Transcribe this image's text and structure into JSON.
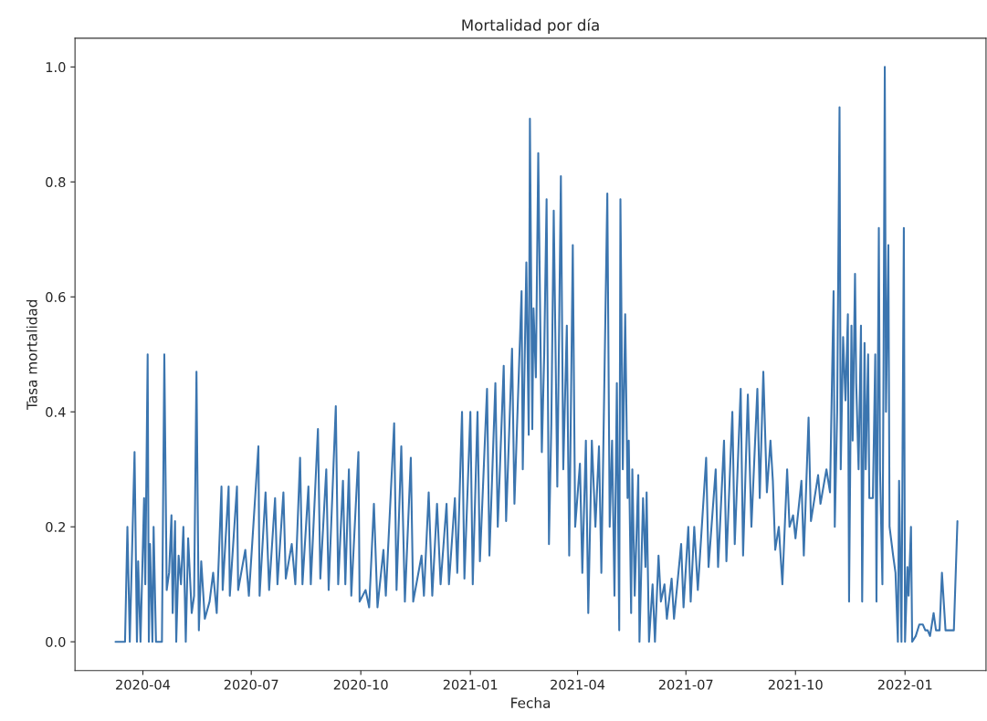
{
  "chart_data": {
    "type": "line",
    "title": "Mortalidad por día",
    "xlabel": "Fecha",
    "ylabel": "Tasa mortalidad",
    "x": [
      "2020-03-09",
      "2020-03-17",
      "2020-03-19",
      "2020-03-21",
      "2020-03-25",
      "2020-03-27",
      "2020-03-28",
      "2020-03-30",
      "2020-04-02",
      "2020-04-03",
      "2020-04-05",
      "2020-04-06",
      "2020-04-07",
      "2020-04-09",
      "2020-04-10",
      "2020-04-12",
      "2020-04-17",
      "2020-04-19",
      "2020-04-21",
      "2020-04-23",
      "2020-04-25",
      "2020-04-26",
      "2020-04-28",
      "2020-04-29",
      "2020-05-01",
      "2020-05-03",
      "2020-05-05",
      "2020-05-07",
      "2020-05-09",
      "2020-05-12",
      "2020-05-14",
      "2020-05-16",
      "2020-05-18",
      "2020-05-20",
      "2020-05-23",
      "2020-05-27",
      "2020-05-30",
      "2020-06-02",
      "2020-06-06",
      "2020-06-07",
      "2020-06-12",
      "2020-06-13",
      "2020-06-19",
      "2020-06-20",
      "2020-06-26",
      "2020-06-29",
      "2020-07-07",
      "2020-07-08",
      "2020-07-13",
      "2020-07-16",
      "2020-07-21",
      "2020-07-23",
      "2020-07-28",
      "2020-07-30",
      "2020-08-04",
      "2020-08-07",
      "2020-08-11",
      "2020-08-13",
      "2020-08-18",
      "2020-08-20",
      "2020-08-26",
      "2020-08-28",
      "2020-09-02",
      "2020-09-04",
      "2020-09-10",
      "2020-09-12",
      "2020-09-16",
      "2020-09-18",
      "2020-09-21",
      "2020-09-23",
      "2020-09-29",
      "2020-09-30",
      "2020-10-05",
      "2020-10-08",
      "2020-10-12",
      "2020-10-15",
      "2020-10-20",
      "2020-10-22",
      "2020-10-29",
      "2020-10-31",
      "2020-11-04",
      "2020-11-07",
      "2020-11-12",
      "2020-11-14",
      "2020-11-21",
      "2020-11-23",
      "2020-11-27",
      "2020-11-30",
      "2020-12-04",
      "2020-12-07",
      "2020-12-12",
      "2020-12-14",
      "2020-12-19",
      "2020-12-21",
      "2020-12-25",
      "2020-12-27",
      "2021-01-01",
      "2021-01-03",
      "2021-01-07",
      "2021-01-09",
      "2021-01-15",
      "2021-01-17",
      "2021-01-22",
      "2021-01-24",
      "2021-01-29",
      "2021-01-31",
      "2021-02-05",
      "2021-02-07",
      "2021-02-13",
      "2021-02-14",
      "2021-02-17",
      "2021-02-19",
      "2021-02-20",
      "2021-02-22",
      "2021-02-23",
      "2021-02-25",
      "2021-02-27",
      "2021-03-02",
      "2021-03-04",
      "2021-03-06",
      "2021-03-08",
      "2021-03-10",
      "2021-03-12",
      "2021-03-15",
      "2021-03-18",
      "2021-03-20",
      "2021-03-23",
      "2021-03-25",
      "2021-03-28",
      "2021-03-30",
      "2021-04-03",
      "2021-04-05",
      "2021-04-08",
      "2021-04-10",
      "2021-04-13",
      "2021-04-16",
      "2021-04-19",
      "2021-04-21",
      "2021-04-26",
      "2021-04-28",
      "2021-04-30",
      "2021-05-02",
      "2021-05-04",
      "2021-05-06",
      "2021-05-07",
      "2021-05-09",
      "2021-05-11",
      "2021-05-13",
      "2021-05-14",
      "2021-05-16",
      "2021-05-17",
      "2021-05-19",
      "2021-05-22",
      "2021-05-23",
      "2021-05-26",
      "2021-05-28",
      "2021-05-29",
      "2021-05-31",
      "2021-06-03",
      "2021-06-05",
      "2021-06-08",
      "2021-06-10",
      "2021-06-13",
      "2021-06-15",
      "2021-06-19",
      "2021-06-21",
      "2021-06-27",
      "2021-06-29",
      "2021-07-03",
      "2021-07-05",
      "2021-07-08",
      "2021-07-11",
      "2021-07-18",
      "2021-07-20",
      "2021-07-26",
      "2021-07-28",
      "2021-08-02",
      "2021-08-04",
      "2021-08-09",
      "2021-08-11",
      "2021-08-16",
      "2021-08-18",
      "2021-08-22",
      "2021-08-25",
      "2021-08-30",
      "2021-09-01",
      "2021-09-04",
      "2021-09-07",
      "2021-09-10",
      "2021-09-12",
      "2021-09-14",
      "2021-09-17",
      "2021-09-20",
      "2021-09-24",
      "2021-09-26",
      "2021-09-29",
      "2021-10-01",
      "2021-10-06",
      "2021-10-08",
      "2021-10-12",
      "2021-10-14",
      "2021-10-20",
      "2021-10-22",
      "2021-10-27",
      "2021-10-30",
      "2021-11-02",
      "2021-11-03",
      "2021-11-05",
      "2021-11-07",
      "2021-11-08",
      "2021-11-10",
      "2021-11-12",
      "2021-11-14",
      "2021-11-15",
      "2021-11-17",
      "2021-11-18",
      "2021-11-20",
      "2021-11-21",
      "2021-11-23",
      "2021-11-25",
      "2021-11-26",
      "2021-11-28",
      "2021-11-29",
      "2021-12-01",
      "2021-12-02",
      "2021-12-05",
      "2021-12-07",
      "2021-12-08",
      "2021-12-10",
      "2021-12-11",
      "2021-12-13",
      "2021-12-14",
      "2021-12-15",
      "2021-12-16",
      "2021-12-18",
      "2021-12-19",
      "2021-12-22",
      "2021-12-24",
      "2021-12-26",
      "2021-12-27",
      "2021-12-29",
      "2021-12-31",
      "2022-01-01",
      "2022-01-03",
      "2022-01-04",
      "2022-01-06",
      "2022-01-07",
      "2022-01-10",
      "2022-01-13",
      "2022-01-16",
      "2022-01-18",
      "2022-01-20",
      "2022-01-22",
      "2022-01-25",
      "2022-01-27",
      "2022-01-30",
      "2022-02-01",
      "2022-02-04",
      "2022-02-08",
      "2022-02-11",
      "2022-02-14"
    ],
    "series": [
      {
        "color": "#3b75af",
        "values": [
          0,
          0,
          0.2,
          0,
          0.33,
          0,
          0.14,
          0,
          0.25,
          0.1,
          0.5,
          0,
          0.17,
          0,
          0.2,
          0,
          0,
          0.5,
          0.09,
          0.12,
          0.22,
          0.05,
          0.21,
          0,
          0.15,
          0.1,
          0.2,
          0,
          0.18,
          0.05,
          0.08,
          0.47,
          0.02,
          0.14,
          0.04,
          0.07,
          0.12,
          0.05,
          0.27,
          0.09,
          0.27,
          0.08,
          0.27,
          0.09,
          0.16,
          0.08,
          0.34,
          0.08,
          0.26,
          0.09,
          0.25,
          0.1,
          0.26,
          0.11,
          0.17,
          0.1,
          0.32,
          0.1,
          0.27,
          0.1,
          0.37,
          0.11,
          0.3,
          0.09,
          0.41,
          0.1,
          0.28,
          0.1,
          0.3,
          0.08,
          0.33,
          0.07,
          0.09,
          0.06,
          0.24,
          0.06,
          0.16,
          0.08,
          0.38,
          0.09,
          0.34,
          0.07,
          0.32,
          0.07,
          0.15,
          0.08,
          0.26,
          0.08,
          0.24,
          0.1,
          0.24,
          0.1,
          0.25,
          0.12,
          0.4,
          0.11,
          0.4,
          0.1,
          0.4,
          0.14,
          0.44,
          0.15,
          0.45,
          0.2,
          0.48,
          0.21,
          0.51,
          0.24,
          0.61,
          0.3,
          0.66,
          0.36,
          0.91,
          0.37,
          0.58,
          0.46,
          0.85,
          0.33,
          0.5,
          0.77,
          0.17,
          0.38,
          0.75,
          0.27,
          0.81,
          0.3,
          0.55,
          0.15,
          0.69,
          0.2,
          0.31,
          0.12,
          0.35,
          0.05,
          0.35,
          0.2,
          0.34,
          0.12,
          0.78,
          0.2,
          0.35,
          0.08,
          0.45,
          0.02,
          0.77,
          0.3,
          0.57,
          0.25,
          0.35,
          0.05,
          0.3,
          0.08,
          0.29,
          0,
          0.25,
          0.13,
          0.26,
          0,
          0.1,
          0,
          0.15,
          0.07,
          0.1,
          0.04,
          0.11,
          0.04,
          0.17,
          0.06,
          0.2,
          0.07,
          0.2,
          0.09,
          0.32,
          0.13,
          0.3,
          0.13,
          0.35,
          0.14,
          0.4,
          0.17,
          0.44,
          0.15,
          0.43,
          0.2,
          0.44,
          0.25,
          0.47,
          0.26,
          0.35,
          0.28,
          0.16,
          0.2,
          0.1,
          0.3,
          0.2,
          0.22,
          0.18,
          0.28,
          0.15,
          0.39,
          0.21,
          0.29,
          0.24,
          0.3,
          0.26,
          0.61,
          0.2,
          0.4,
          0.93,
          0.3,
          0.53,
          0.42,
          0.57,
          0.07,
          0.55,
          0.35,
          0.64,
          0.45,
          0.3,
          0.55,
          0.07,
          0.52,
          0.3,
          0.5,
          0.25,
          0.25,
          0.5,
          0.07,
          0.72,
          0.3,
          0.1,
          0.5,
          1.0,
          0.4,
          0.69,
          0.2,
          0.15,
          0.12,
          0,
          0.28,
          0,
          0.72,
          0,
          0.13,
          0.08,
          0.2,
          0,
          0.01,
          0.03,
          0.03,
          0.02,
          0.02,
          0.01,
          0.05,
          0.02,
          0.02,
          0.12,
          0.02,
          0.02,
          0.02,
          0.21
        ]
      }
    ],
    "xlim": [
      "2020-02-04",
      "2022-03-10"
    ],
    "xticks": [
      "2020-04",
      "2020-07",
      "2020-10",
      "2021-01",
      "2021-04",
      "2021-07",
      "2021-10",
      "2022-01"
    ],
    "ylim": [
      -0.05,
      1.05
    ],
    "yticks": [
      {
        "value": 0,
        "label": "0.0"
      },
      0.2,
      0.4,
      0.6,
      0.8,
      {
        "value": 1,
        "label": "1.0"
      }
    ],
    "grid": false,
    "line_style": "solid",
    "marker": "none"
  }
}
